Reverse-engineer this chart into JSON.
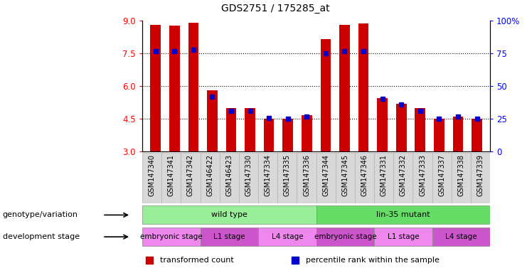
{
  "title": "GDS2751 / 175285_at",
  "samples": [
    "GSM147340",
    "GSM147341",
    "GSM147342",
    "GSM146422",
    "GSM146423",
    "GSM147330",
    "GSM147334",
    "GSM147335",
    "GSM147336",
    "GSM147344",
    "GSM147345",
    "GSM147346",
    "GSM147331",
    "GSM147332",
    "GSM147333",
    "GSM147337",
    "GSM147338",
    "GSM147339"
  ],
  "red_values": [
    8.8,
    8.75,
    8.9,
    5.8,
    5.0,
    5.0,
    4.5,
    4.5,
    4.65,
    8.15,
    8.8,
    8.85,
    5.45,
    5.2,
    5.0,
    4.5,
    4.6,
    4.5
  ],
  "blue_values": [
    7.6,
    7.6,
    7.65,
    5.5,
    4.85,
    4.85,
    4.55,
    4.5,
    4.6,
    7.5,
    7.6,
    7.6,
    5.4,
    5.15,
    4.85,
    4.5,
    4.6,
    4.5
  ],
  "ymin": 3.0,
  "ymax": 9.0,
  "yticks": [
    3,
    4.5,
    6,
    7.5,
    9
  ],
  "right_yticks": [
    0,
    25,
    50,
    75,
    100
  ],
  "grid_lines": [
    4.5,
    6.0,
    7.5
  ],
  "bar_color": "#cc0000",
  "blue_color": "#0000cc",
  "bar_width": 0.55,
  "genotype_groups": [
    {
      "name": "wild type",
      "start": 0,
      "end": 9,
      "color": "#99ee99"
    },
    {
      "name": "lin-35 mutant",
      "start": 9,
      "end": 18,
      "color": "#66dd66"
    }
  ],
  "stage_groups": [
    {
      "name": "embryonic stage",
      "start": 0,
      "end": 3,
      "color": "#ee88ee"
    },
    {
      "name": "L1 stage",
      "start": 3,
      "end": 6,
      "color": "#cc55cc"
    },
    {
      "name": "L4 stage",
      "start": 6,
      "end": 9,
      "color": "#ee88ee"
    },
    {
      "name": "embryonic stage",
      "start": 9,
      "end": 12,
      "color": "#cc55cc"
    },
    {
      "name": "L1 stage",
      "start": 12,
      "end": 15,
      "color": "#ee88ee"
    },
    {
      "name": "L4 stage",
      "start": 15,
      "end": 18,
      "color": "#cc55cc"
    }
  ],
  "genotype_label": "genotype/variation",
  "stage_label": "development stage",
  "legend_items": [
    {
      "label": "transformed count",
      "color": "#cc0000"
    },
    {
      "label": "percentile rank within the sample",
      "color": "#0000cc"
    }
  ],
  "sample_bg": "#d8d8d8",
  "title_fontsize": 10
}
